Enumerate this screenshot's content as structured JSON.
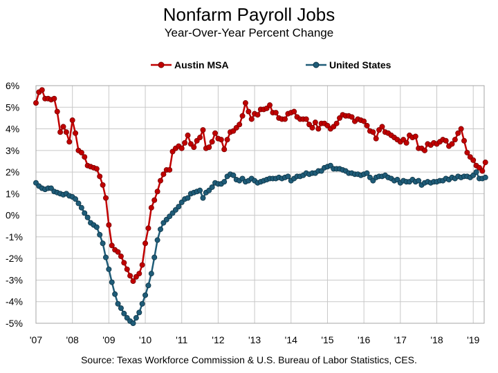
{
  "chart_data": {
    "type": "line",
    "title": "Nonfarm Payroll Jobs",
    "subtitle": "Year-Over-Year Percent Change",
    "xlabel": "",
    "ylabel": "",
    "source": "Source:  Texas Workforce Commission & U.S. Bureau of Labor Statistics, CES.",
    "x_start": "2007-01",
    "x_frequency": "monthly",
    "xlim": [
      2007.0,
      2019.3
    ],
    "ylim": [
      -5,
      6
    ],
    "x_tick_labels": [
      "'07",
      "'08",
      "'09",
      "'10",
      "'11",
      "'12",
      "'13",
      "'14",
      "'15",
      "'16",
      "'17",
      "'18",
      "'19"
    ],
    "x_tick_values": [
      2007,
      2008,
      2009,
      2010,
      2011,
      2012,
      2013,
      2014,
      2015,
      2016,
      2017,
      2018,
      2019
    ],
    "y_tick_labels": [
      "6%",
      "5%",
      "4%",
      "3%",
      "2%",
      "1%",
      "0%",
      "-1%",
      "-2%",
      "-3%",
      "-4%",
      "-5%"
    ],
    "y_tick_values": [
      6,
      5,
      4,
      3,
      2,
      1,
      0,
      -1,
      -2,
      -3,
      -4,
      -5
    ],
    "grid": true,
    "legend_position": "top",
    "series": [
      {
        "name": "Austin MSA",
        "color": "#c00000",
        "values": [
          5.2,
          5.7,
          5.8,
          5.4,
          5.4,
          5.35,
          5.4,
          4.8,
          3.85,
          4.1,
          3.85,
          3.4,
          4.4,
          3.8,
          3.0,
          2.9,
          2.7,
          2.3,
          2.25,
          2.2,
          2.15,
          1.8,
          1.4,
          0.8,
          -0.45,
          -1.4,
          -1.6,
          -1.7,
          -1.9,
          -2.2,
          -2.5,
          -2.8,
          -3.05,
          -2.85,
          -2.7,
          -2.3,
          -1.3,
          -0.6,
          0.35,
          0.7,
          1.1,
          1.6,
          1.9,
          2.1,
          2.1,
          2.95,
          3.1,
          3.2,
          3.1,
          3.35,
          3.7,
          3.3,
          3.15,
          3.45,
          3.6,
          3.95,
          3.1,
          3.15,
          3.4,
          3.8,
          3.55,
          3.5,
          3.05,
          3.5,
          3.85,
          3.9,
          4.05,
          4.2,
          4.6,
          5.2,
          4.8,
          4.45,
          4.7,
          4.65,
          4.9,
          4.9,
          4.95,
          5.1,
          4.75,
          4.75,
          4.5,
          4.45,
          4.45,
          4.7,
          4.75,
          4.8,
          4.55,
          4.45,
          4.45,
          4.45,
          4.2,
          4.05,
          4.3,
          4.0,
          4.25,
          4.25,
          4.15,
          4.0,
          4.1,
          4.25,
          4.5,
          4.65,
          4.6,
          4.6,
          4.55,
          4.35,
          4.45,
          4.4,
          4.35,
          4.15,
          3.9,
          3.85,
          3.55,
          3.95,
          4.1,
          3.85,
          3.8,
          3.7,
          3.6,
          3.5,
          3.4,
          3.5,
          3.35,
          3.7,
          3.6,
          3.65,
          3.1,
          3.1,
          3.0,
          3.3,
          3.25,
          3.35,
          3.3,
          3.4,
          3.5,
          3.45,
          3.2,
          3.3,
          3.5,
          3.8,
          4.0,
          3.45,
          2.9,
          2.7,
          2.55,
          2.3,
          2.2,
          2.05,
          2.45
        ]
      },
      {
        "name": "United States",
        "color": "#1f5c78",
        "values": [
          1.5,
          1.35,
          1.25,
          1.2,
          1.25,
          1.25,
          1.1,
          1.05,
          1.0,
          0.95,
          1.0,
          0.9,
          0.85,
          0.75,
          0.55,
          0.35,
          0.1,
          -0.1,
          -0.35,
          -0.45,
          -0.55,
          -0.9,
          -1.3,
          -1.95,
          -2.5,
          -3.1,
          -3.65,
          -4.1,
          -4.3,
          -4.55,
          -4.75,
          -4.9,
          -5.0,
          -4.75,
          -4.5,
          -4.1,
          -3.7,
          -3.25,
          -2.7,
          -1.95,
          -1.15,
          -0.65,
          -0.35,
          -0.2,
          -0.05,
          0.1,
          0.25,
          0.4,
          0.6,
          0.75,
          0.8,
          1.0,
          1.05,
          1.1,
          1.15,
          0.8,
          1.05,
          1.15,
          1.3,
          1.5,
          1.45,
          1.45,
          1.55,
          1.8,
          1.9,
          1.85,
          1.65,
          1.6,
          1.7,
          1.55,
          1.6,
          1.7,
          1.6,
          1.5,
          1.55,
          1.6,
          1.65,
          1.7,
          1.7,
          1.7,
          1.75,
          1.7,
          1.75,
          1.8,
          1.6,
          1.7,
          1.8,
          1.8,
          1.85,
          1.95,
          1.9,
          1.95,
          1.95,
          2.05,
          2.05,
          2.2,
          2.25,
          2.3,
          2.15,
          2.15,
          2.15,
          2.1,
          2.05,
          1.95,
          1.95,
          1.9,
          1.9,
          1.85,
          1.9,
          1.95,
          1.75,
          1.6,
          1.75,
          1.8,
          1.8,
          1.85,
          1.75,
          1.7,
          1.6,
          1.65,
          1.5,
          1.6,
          1.55,
          1.55,
          1.65,
          1.55,
          1.6,
          1.4,
          1.5,
          1.55,
          1.5,
          1.55,
          1.55,
          1.6,
          1.6,
          1.7,
          1.65,
          1.75,
          1.7,
          1.8,
          1.75,
          1.8,
          1.8,
          1.75,
          1.85,
          2.0,
          1.7,
          1.7,
          1.75
        ]
      }
    ]
  }
}
